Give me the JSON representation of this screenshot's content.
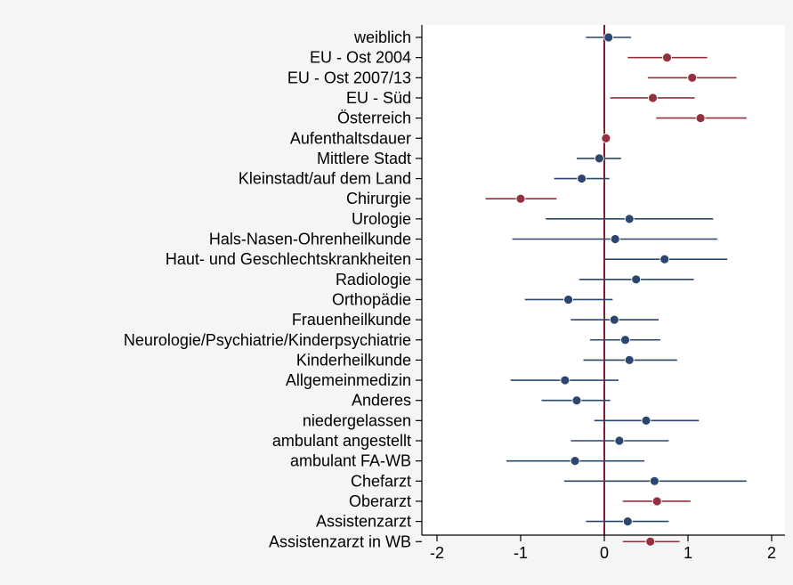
{
  "chart_data": {
    "type": "scatter",
    "orientation": "horizontal",
    "title": "",
    "xlabel": "",
    "ylabel": "",
    "xlim": [
      -2.2,
      2.1
    ],
    "x_ticks": [
      -2,
      -1,
      0,
      1,
      2
    ],
    "x_tick_labels": [
      "-2",
      "-1",
      "0",
      "1",
      "2"
    ],
    "reference_line": 0,
    "grid": false,
    "legend": "none",
    "colors": {
      "background": "#f4f5f7",
      "plot_bg": "#ffffff",
      "significant": "#93303d",
      "not_significant": "#2b466f",
      "reference_line": "#7a1e2e"
    },
    "categories": [
      "weiblich",
      "EU - Ost 2004",
      "EU - Ost 2007/13",
      "EU - Süd",
      "Österreich",
      "Aufenthaltsdauer",
      "Mittlere Stadt",
      "Kleinstadt/auf dem Land",
      "Chirurgie",
      "Urologie",
      "Hals-Nasen-Ohrenheilkunde",
      "Haut- und Geschlechtskrankheiten",
      "Radiologie",
      "Orthopädie",
      "Frauenheilkunde",
      "Neurologie/Psychiatrie/Kinderpsychiatrie",
      "Kinderheilkunde",
      "Allgemeinmedizin",
      "Anderes",
      "niedergelassen",
      "ambulant angestellt",
      "ambulant FA-WB",
      "Chefarzt",
      "Oberarzt",
      "Assistenzarzt",
      "Assistenzarzt in WB"
    ],
    "estimates": [
      0.05,
      0.75,
      1.05,
      0.58,
      1.15,
      0.02,
      -0.06,
      -0.27,
      -1.0,
      0.3,
      0.13,
      0.72,
      0.38,
      -0.43,
      0.12,
      0.25,
      0.3,
      -0.47,
      -0.33,
      0.5,
      0.18,
      -0.35,
      0.6,
      0.63,
      0.28,
      0.55
    ],
    "lower": [
      -0.22,
      0.28,
      0.52,
      0.07,
      0.62,
      -0.01,
      -0.33,
      -0.6,
      -1.42,
      -0.7,
      -1.1,
      0.0,
      -0.3,
      -0.95,
      -0.4,
      -0.17,
      -0.25,
      -1.12,
      -0.75,
      -0.12,
      -0.4,
      -1.17,
      -0.48,
      0.22,
      -0.22,
      0.22
    ],
    "upper": [
      0.32,
      1.23,
      1.58,
      1.08,
      1.7,
      0.05,
      0.2,
      0.06,
      -0.57,
      1.3,
      1.35,
      1.47,
      1.07,
      0.1,
      0.65,
      0.67,
      0.87,
      0.17,
      0.07,
      1.13,
      0.77,
      0.48,
      1.7,
      1.03,
      0.77,
      0.9
    ],
    "significant": [
      false,
      true,
      true,
      true,
      true,
      true,
      false,
      false,
      true,
      false,
      false,
      false,
      false,
      false,
      false,
      false,
      false,
      false,
      false,
      false,
      false,
      false,
      false,
      true,
      false,
      true
    ]
  }
}
